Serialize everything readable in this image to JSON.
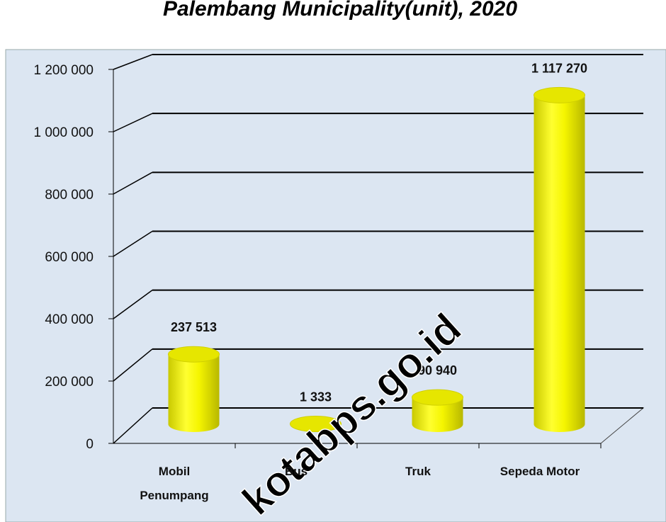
{
  "chart_data": {
    "type": "bar3d",
    "title": "Palembang Municipality(unit), 2020",
    "categories": [
      "Mobil Penumpang",
      "Bus",
      "Truk",
      "Sepeda Motor"
    ],
    "values": [
      237513,
      1333,
      90940,
      1117270
    ],
    "value_labels": [
      "237 513",
      "1 333",
      "90 940",
      "1 117 270"
    ],
    "color": "#ffff00",
    "ylim": [
      0,
      1200000
    ],
    "yticks": [
      0,
      {
        "value": 200000,
        "label": "200 000"
      },
      {
        "value": 400000,
        "label": "400 000"
      },
      {
        "value": 600000,
        "label": "600 000"
      },
      {
        "value": 800000,
        "label": "800 000"
      },
      {
        "value": 1000000,
        "label": "1 000 000"
      },
      {
        "value": 1200000,
        "label": "1 200 000"
      }
    ],
    "grid": true,
    "watermark": "kotabps.go.id"
  }
}
